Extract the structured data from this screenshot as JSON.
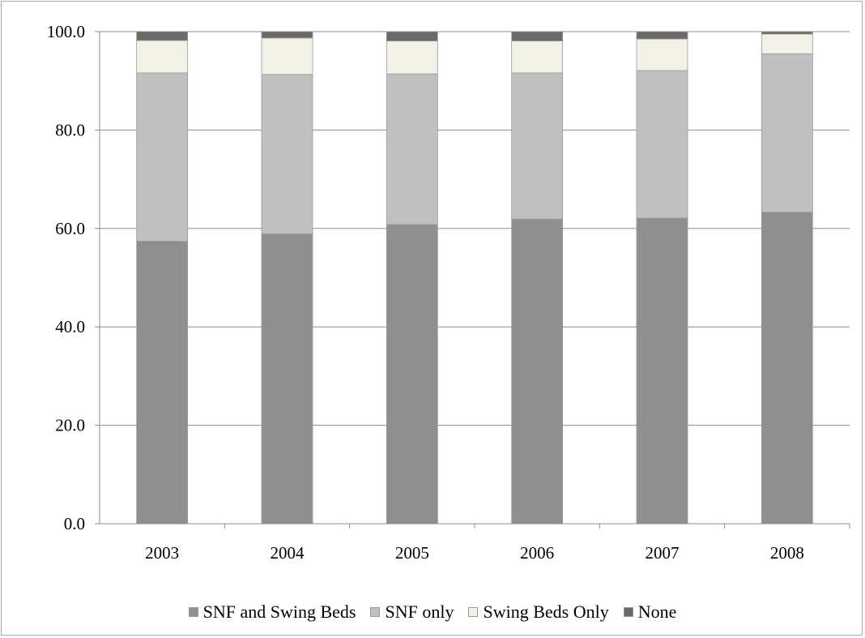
{
  "chart_data": {
    "type": "bar",
    "stacked": true,
    "categories": [
      "2003",
      "2004",
      "2005",
      "2006",
      "2007",
      "2008"
    ],
    "series": [
      {
        "name": "SNF and Swing Beds",
        "color": "#8f8f8f",
        "values": [
          57.4,
          58.9,
          60.8,
          61.9,
          62.1,
          63.3
        ]
      },
      {
        "name": "SNF only",
        "color": "#c0c0c0",
        "values": [
          34.2,
          32.4,
          30.6,
          29.7,
          30.0,
          32.2
        ]
      },
      {
        "name": "Swing Beds Only",
        "color": "#f2f1e6",
        "values": [
          6.6,
          7.4,
          6.7,
          6.5,
          6.4,
          4.0
        ]
      },
      {
        "name": "None",
        "color": "#6a6a6a",
        "values": [
          1.8,
          1.3,
          1.9,
          1.9,
          1.5,
          0.5
        ]
      }
    ],
    "yticks": [
      "0.0",
      "20.0",
      "40.0",
      "60.0",
      "80.0",
      "100.0"
    ],
    "ylim": [
      0,
      100
    ],
    "grid": true,
    "legend_position": "bottom",
    "title": "",
    "xlabel": "",
    "ylabel": ""
  }
}
